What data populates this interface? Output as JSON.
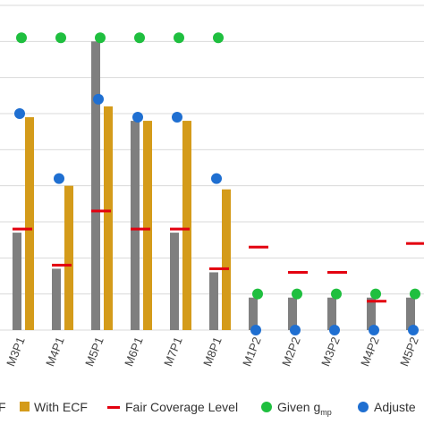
{
  "chart_data": {
    "type": "bar",
    "categories": [
      "M3P1",
      "M4P1",
      "M5P1",
      "M6P1",
      "M7P1",
      "M8P1",
      "M1P2",
      "M2P2",
      "M3P2",
      "M4P2",
      "M5P2"
    ],
    "category_labels_visible": [
      "M3P1",
      "M4P1",
      "M5P1",
      "M6P1",
      "M7P1",
      "M8P1",
      "M1P2",
      "M2P2",
      "M3P2",
      "M4P2",
      "M5P2"
    ],
    "ylim": [
      0,
      9
    ],
    "grid": true,
    "legend_position": "bottom",
    "series": [
      {
        "name": "",
        "kind": "bar",
        "color": "#7f7f7f",
        "values": [
          2.7,
          1.7,
          8.0,
          5.8,
          2.7,
          1.6,
          0.9,
          0.9,
          0.9,
          0.9,
          0.9
        ]
      },
      {
        "name": "With ECF",
        "kind": "bar",
        "color": "#d49b1a",
        "values": [
          5.9,
          4.0,
          6.2,
          5.8,
          5.8,
          3.9,
          null,
          null,
          null,
          null,
          null
        ]
      },
      {
        "name": "Fair Coverage Level",
        "kind": "dash",
        "color": "#e3000f",
        "values": [
          2.8,
          1.8,
          3.3,
          2.8,
          2.8,
          1.7,
          2.3,
          1.6,
          1.6,
          0.8,
          2.4
        ]
      },
      {
        "name": "Given g",
        "name_subscript": "mp",
        "kind": "dot",
        "color": "#1fbf3f",
        "values": [
          8.1,
          8.1,
          8.1,
          8.1,
          8.1,
          8.1,
          1.0,
          1.0,
          1.0,
          1.0,
          1.0
        ]
      },
      {
        "name": "Adjuste",
        "kind": "dot",
        "color": "#1f6fd1",
        "values": [
          6.0,
          4.2,
          6.4,
          5.9,
          5.9,
          4.2,
          0.0,
          0.0,
          0.0,
          0.0,
          0.0
        ]
      }
    ],
    "legend": [
      {
        "label": "F",
        "color": "#7f7f7f",
        "symbol": "none"
      },
      {
        "label": "With ECF",
        "color": "#d49b1a",
        "symbol": "square"
      },
      {
        "label": "Fair Coverage Level",
        "color": "#e3000f",
        "symbol": "dash"
      },
      {
        "label": "Given g",
        "subscript": "mp",
        "color": "#1fbf3f",
        "symbol": "dot"
      },
      {
        "label": "Adjuste",
        "color": "#1f6fd1",
        "symbol": "dot"
      }
    ]
  }
}
